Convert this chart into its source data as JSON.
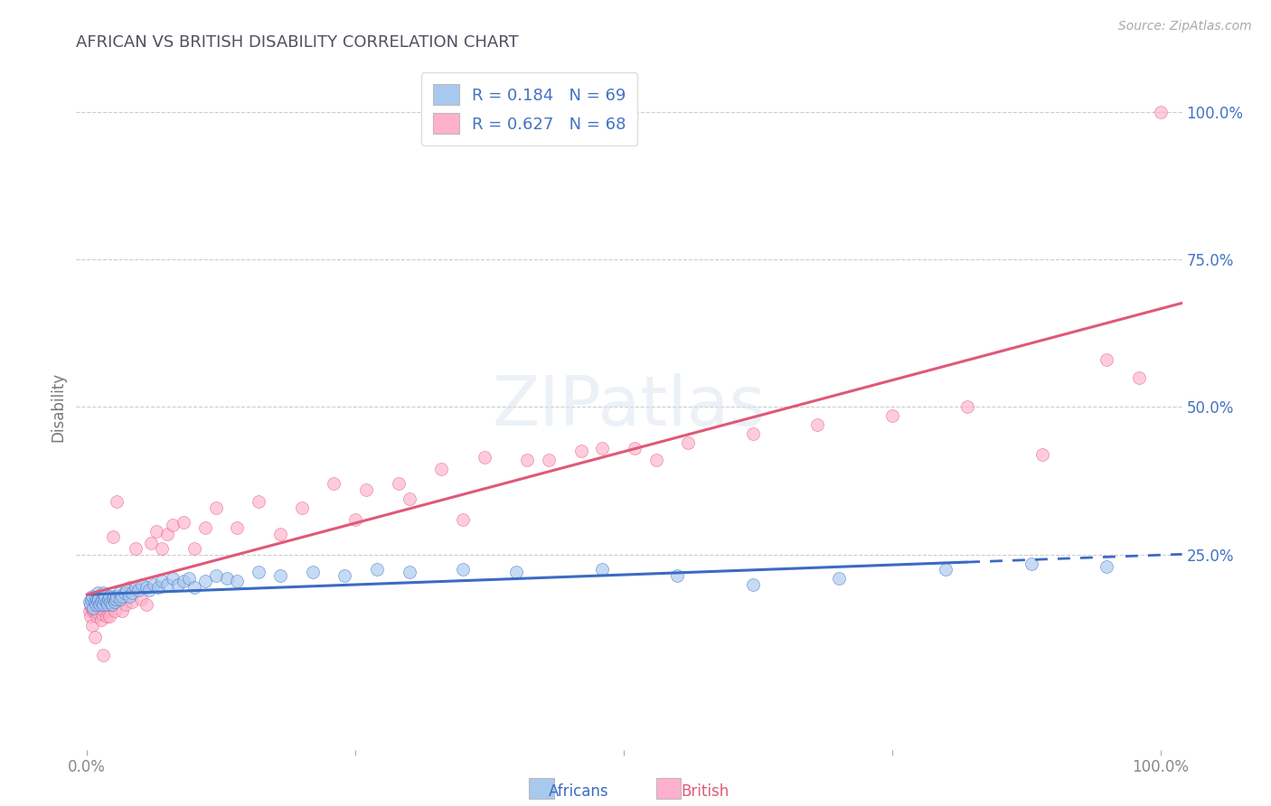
{
  "title": "AFRICAN VS BRITISH DISABILITY CORRELATION CHART",
  "source": "Source: ZipAtlas.com",
  "ylabel": "Disability",
  "xlim": [
    -0.01,
    1.02
  ],
  "ylim": [
    -0.08,
    1.08
  ],
  "ytick_positions": [
    0.25,
    0.5,
    0.75,
    1.0
  ],
  "ytick_labels": [
    "25.0%",
    "50.0%",
    "75.0%",
    "100.0%"
  ],
  "xtick_positions": [
    0.0,
    1.0
  ],
  "xtick_labels": [
    "0.0%",
    "100.0%"
  ],
  "africans_R": 0.184,
  "africans_N": 69,
  "british_R": 0.627,
  "british_N": 68,
  "african_dot_color": "#A8C8EE",
  "british_dot_color": "#FFB0CC",
  "african_line_color": "#3B6BC4",
  "british_line_color": "#E05878",
  "background_color": "#FFFFFF",
  "grid_color": "#CCCCCC",
  "title_color": "#505060",
  "tick_color": "#4472C4",
  "legend_box_color_african": "#A8C8EE",
  "legend_box_color_british": "#FFB0CC",
  "africans_x": [
    0.002,
    0.003,
    0.004,
    0.005,
    0.006,
    0.007,
    0.008,
    0.009,
    0.01,
    0.01,
    0.011,
    0.012,
    0.013,
    0.014,
    0.015,
    0.015,
    0.016,
    0.017,
    0.018,
    0.019,
    0.02,
    0.021,
    0.022,
    0.023,
    0.024,
    0.025,
    0.026,
    0.027,
    0.028,
    0.03,
    0.031,
    0.033,
    0.035,
    0.037,
    0.039,
    0.042,
    0.045,
    0.048,
    0.051,
    0.055,
    0.058,
    0.062,
    0.066,
    0.07,
    0.075,
    0.08,
    0.085,
    0.09,
    0.095,
    0.1,
    0.11,
    0.12,
    0.13,
    0.14,
    0.16,
    0.18,
    0.21,
    0.24,
    0.27,
    0.3,
    0.35,
    0.4,
    0.48,
    0.55,
    0.62,
    0.7,
    0.8,
    0.88,
    0.95
  ],
  "africans_y": [
    0.17,
    0.165,
    0.175,
    0.18,
    0.16,
    0.17,
    0.165,
    0.175,
    0.17,
    0.185,
    0.175,
    0.165,
    0.17,
    0.175,
    0.165,
    0.185,
    0.175,
    0.18,
    0.17,
    0.165,
    0.175,
    0.18,
    0.17,
    0.165,
    0.175,
    0.18,
    0.17,
    0.175,
    0.18,
    0.185,
    0.175,
    0.18,
    0.185,
    0.19,
    0.18,
    0.185,
    0.195,
    0.19,
    0.2,
    0.195,
    0.19,
    0.2,
    0.195,
    0.205,
    0.2,
    0.21,
    0.2,
    0.205,
    0.21,
    0.195,
    0.205,
    0.215,
    0.21,
    0.205,
    0.22,
    0.215,
    0.22,
    0.215,
    0.225,
    0.22,
    0.225,
    0.22,
    0.225,
    0.215,
    0.2,
    0.21,
    0.225,
    0.235,
    0.23
  ],
  "british_x": [
    0.002,
    0.003,
    0.004,
    0.005,
    0.006,
    0.007,
    0.008,
    0.009,
    0.01,
    0.011,
    0.012,
    0.013,
    0.014,
    0.015,
    0.016,
    0.017,
    0.018,
    0.019,
    0.02,
    0.021,
    0.022,
    0.024,
    0.026,
    0.028,
    0.03,
    0.033,
    0.036,
    0.039,
    0.042,
    0.045,
    0.05,
    0.055,
    0.06,
    0.065,
    0.07,
    0.075,
    0.08,
    0.09,
    0.1,
    0.11,
    0.12,
    0.14,
    0.16,
    0.18,
    0.2,
    0.23,
    0.26,
    0.29,
    0.33,
    0.37,
    0.41,
    0.46,
    0.51,
    0.56,
    0.62,
    0.68,
    0.75,
    0.82,
    0.89,
    0.95,
    0.98,
    1.0,
    0.25,
    0.3,
    0.35,
    0.43,
    0.48,
    0.53
  ],
  "british_y": [
    0.155,
    0.145,
    0.16,
    0.13,
    0.155,
    0.11,
    0.155,
    0.145,
    0.165,
    0.15,
    0.16,
    0.14,
    0.15,
    0.08,
    0.155,
    0.165,
    0.145,
    0.155,
    0.16,
    0.145,
    0.165,
    0.28,
    0.155,
    0.34,
    0.175,
    0.155,
    0.165,
    0.195,
    0.17,
    0.26,
    0.175,
    0.165,
    0.27,
    0.29,
    0.26,
    0.285,
    0.3,
    0.305,
    0.26,
    0.295,
    0.33,
    0.295,
    0.34,
    0.285,
    0.33,
    0.37,
    0.36,
    0.37,
    0.395,
    0.415,
    0.41,
    0.425,
    0.43,
    0.44,
    0.455,
    0.47,
    0.485,
    0.5,
    0.42,
    0.58,
    0.55,
    1.0,
    0.31,
    0.345,
    0.31,
    0.41,
    0.43,
    0.41
  ]
}
